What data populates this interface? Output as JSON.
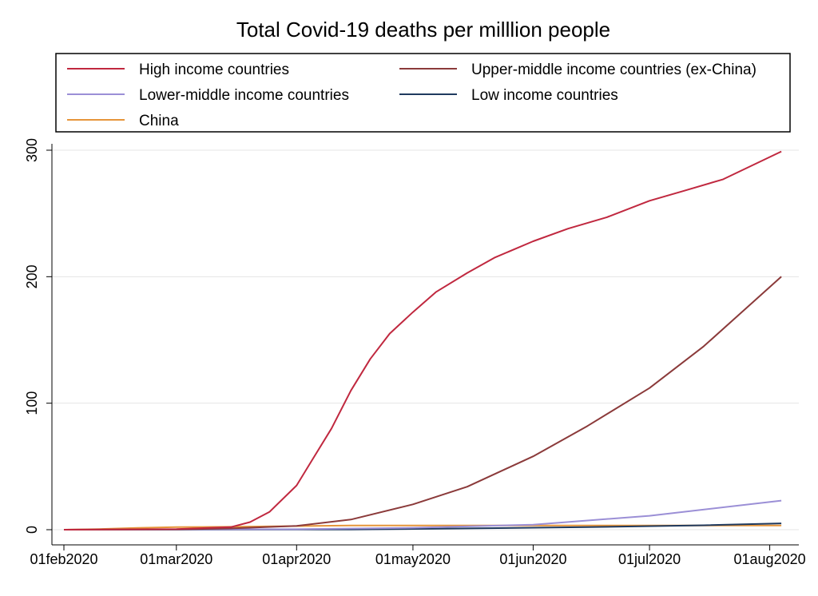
{
  "chart_data": {
    "type": "line",
    "title": "Total Covid-19 deaths per milllion people",
    "xlabel": "",
    "ylabel": "",
    "x_range": [
      "2020-02-01",
      "2020-08-05"
    ],
    "ylim": [
      0,
      300
    ],
    "y_ticks": [
      0,
      100,
      200,
      300
    ],
    "x_ticks": [
      {
        "date": "2020-02-01",
        "label": "01feb2020"
      },
      {
        "date": "2020-03-01",
        "label": "01mar2020"
      },
      {
        "date": "2020-04-01",
        "label": "01apr2020"
      },
      {
        "date": "2020-05-01",
        "label": "01may2020"
      },
      {
        "date": "2020-06-01",
        "label": "01jun2020"
      },
      {
        "date": "2020-07-01",
        "label": "01jul2020"
      },
      {
        "date": "2020-08-01",
        "label": "01aug2020"
      }
    ],
    "grid": "horizontal",
    "legend_position": "top",
    "series": [
      {
        "name": "High income countries",
        "color": "#c0283f",
        "points": [
          [
            "2020-02-01",
            0
          ],
          [
            "2020-03-01",
            0.5
          ],
          [
            "2020-03-15",
            2
          ],
          [
            "2020-03-20",
            6
          ],
          [
            "2020-03-25",
            14
          ],
          [
            "2020-04-01",
            35
          ],
          [
            "2020-04-05",
            55
          ],
          [
            "2020-04-10",
            80
          ],
          [
            "2020-04-15",
            110
          ],
          [
            "2020-04-20",
            135
          ],
          [
            "2020-04-25",
            155
          ],
          [
            "2020-05-01",
            172
          ],
          [
            "2020-05-07",
            188
          ],
          [
            "2020-05-15",
            203
          ],
          [
            "2020-05-22",
            215
          ],
          [
            "2020-06-01",
            228
          ],
          [
            "2020-06-10",
            238
          ],
          [
            "2020-06-20",
            247
          ],
          [
            "2020-07-01",
            260
          ],
          [
            "2020-07-10",
            268
          ],
          [
            "2020-07-20",
            277
          ],
          [
            "2020-08-04",
            299
          ]
        ]
      },
      {
        "name": "Upper-middle income countries (ex-China)",
        "color": "#8b3a3a",
        "points": [
          [
            "2020-02-01",
            0
          ],
          [
            "2020-03-01",
            0.3
          ],
          [
            "2020-03-15",
            1
          ],
          [
            "2020-04-01",
            3
          ],
          [
            "2020-04-15",
            8
          ],
          [
            "2020-05-01",
            20
          ],
          [
            "2020-05-15",
            34
          ],
          [
            "2020-06-01",
            58
          ],
          [
            "2020-06-15",
            82
          ],
          [
            "2020-07-01",
            112
          ],
          [
            "2020-07-15",
            145
          ],
          [
            "2020-08-04",
            200
          ]
        ]
      },
      {
        "name": "Lower-middle income countries",
        "color": "#9b8fd6",
        "points": [
          [
            "2020-02-01",
            0
          ],
          [
            "2020-04-01",
            0.4
          ],
          [
            "2020-05-01",
            1.5
          ],
          [
            "2020-06-01",
            4
          ],
          [
            "2020-07-01",
            11
          ],
          [
            "2020-08-04",
            23
          ]
        ]
      },
      {
        "name": "Low income countries",
        "color": "#1f3a5f",
        "points": [
          [
            "2020-02-01",
            0
          ],
          [
            "2020-04-15",
            0.2
          ],
          [
            "2020-05-15",
            1
          ],
          [
            "2020-06-15",
            2
          ],
          [
            "2020-07-15",
            3.5
          ],
          [
            "2020-08-04",
            5
          ]
        ]
      },
      {
        "name": "China",
        "color": "#e6953a",
        "points": [
          [
            "2020-02-01",
            0
          ],
          [
            "2020-02-10",
            0.5
          ],
          [
            "2020-02-20",
            1.4
          ],
          [
            "2020-03-01",
            2
          ],
          [
            "2020-03-15",
            2.3
          ],
          [
            "2020-04-15",
            3.3
          ],
          [
            "2020-08-04",
            3.3
          ]
        ]
      }
    ]
  }
}
